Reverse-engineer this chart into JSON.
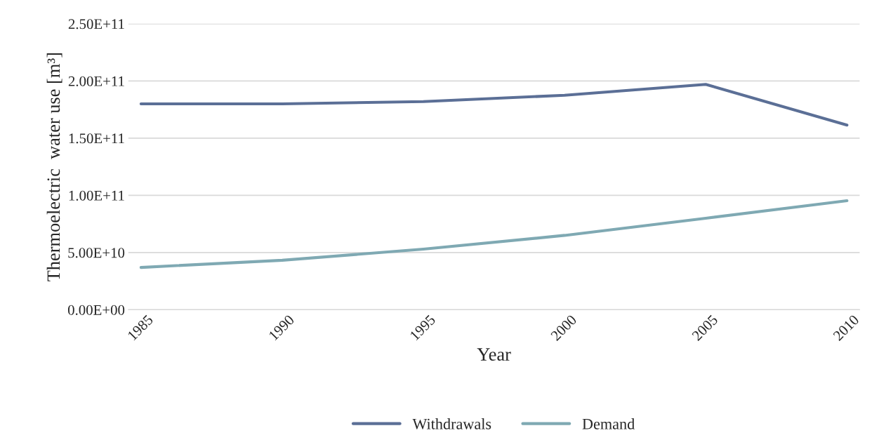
{
  "chart_data": {
    "type": "line",
    "xlabel": "Year",
    "ylabel": "Thermoelectric  water use [m³]",
    "categories": [
      "1985",
      "1990",
      "1995",
      "2000",
      "2005",
      "2010"
    ],
    "series": [
      {
        "name": "Withdrawals",
        "color": "#5b6f96",
        "values": [
          180000000000.0,
          180000000000.0,
          182000000000.0,
          187500000000.0,
          197000000000.0,
          161500000000.0
        ]
      },
      {
        "name": "Demand",
        "color": "#7fa9b3",
        "values": [
          37000000000.0,
          43300000000.0,
          53000000000.0,
          65000000000.0,
          80000000000.0,
          95300000000.0
        ]
      }
    ],
    "ylim": [
      0,
      250000000000.0
    ],
    "yticks": [
      {
        "value": 0,
        "label": "0.00E+00"
      },
      {
        "value": 50000000000.0,
        "label": "5.00E+10"
      },
      {
        "value": 100000000000.0,
        "label": "1.00E+11"
      },
      {
        "value": 150000000000.0,
        "label": "1.50E+11"
      },
      {
        "value": 200000000000.0,
        "label": "2.00E+11"
      },
      {
        "value": 250000000000.0,
        "label": "2.50E+11"
      }
    ],
    "grid": "y",
    "legend": "bottom",
    "marker": "none",
    "line_style": "solid"
  }
}
